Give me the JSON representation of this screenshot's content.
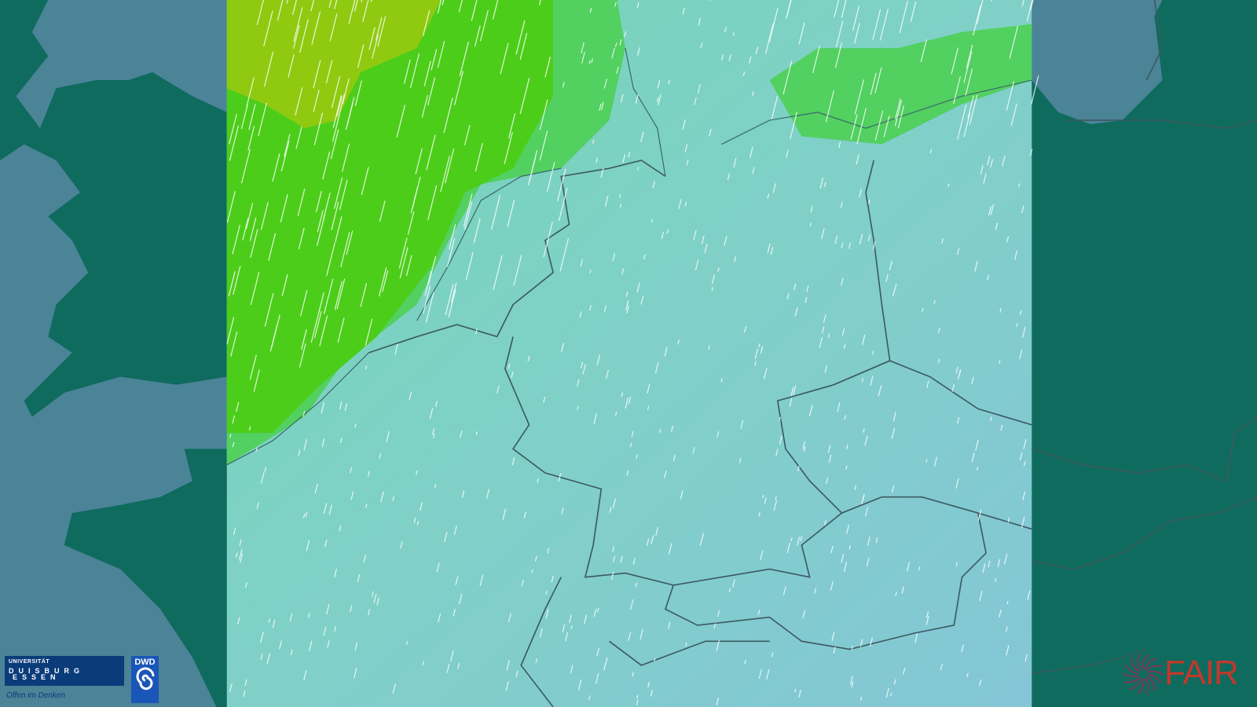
{
  "map": {
    "type": "weather-forecast-wind-map",
    "region": "Central Europe",
    "colors": {
      "sea": "#4b8397",
      "land_outside": "#0e6b5e",
      "field_low": "#80c9d6",
      "field_mid": "#74d6b4",
      "field_high": "#4ccd1a",
      "field_peak": "#8fca10",
      "border": "#3c5a60",
      "wind_streak": "#ffffff"
    }
  },
  "logos": {
    "ude": {
      "line1": "UNIVERSITÄT",
      "line2": "DUISBURG",
      "line3": "ESSEN",
      "tagline": "Offen im Denken"
    },
    "dwd": {
      "text": "DWD",
      "icon": "spiral-icon"
    },
    "fair": {
      "text": "FAIR",
      "icon": "sunburst-icon"
    }
  }
}
